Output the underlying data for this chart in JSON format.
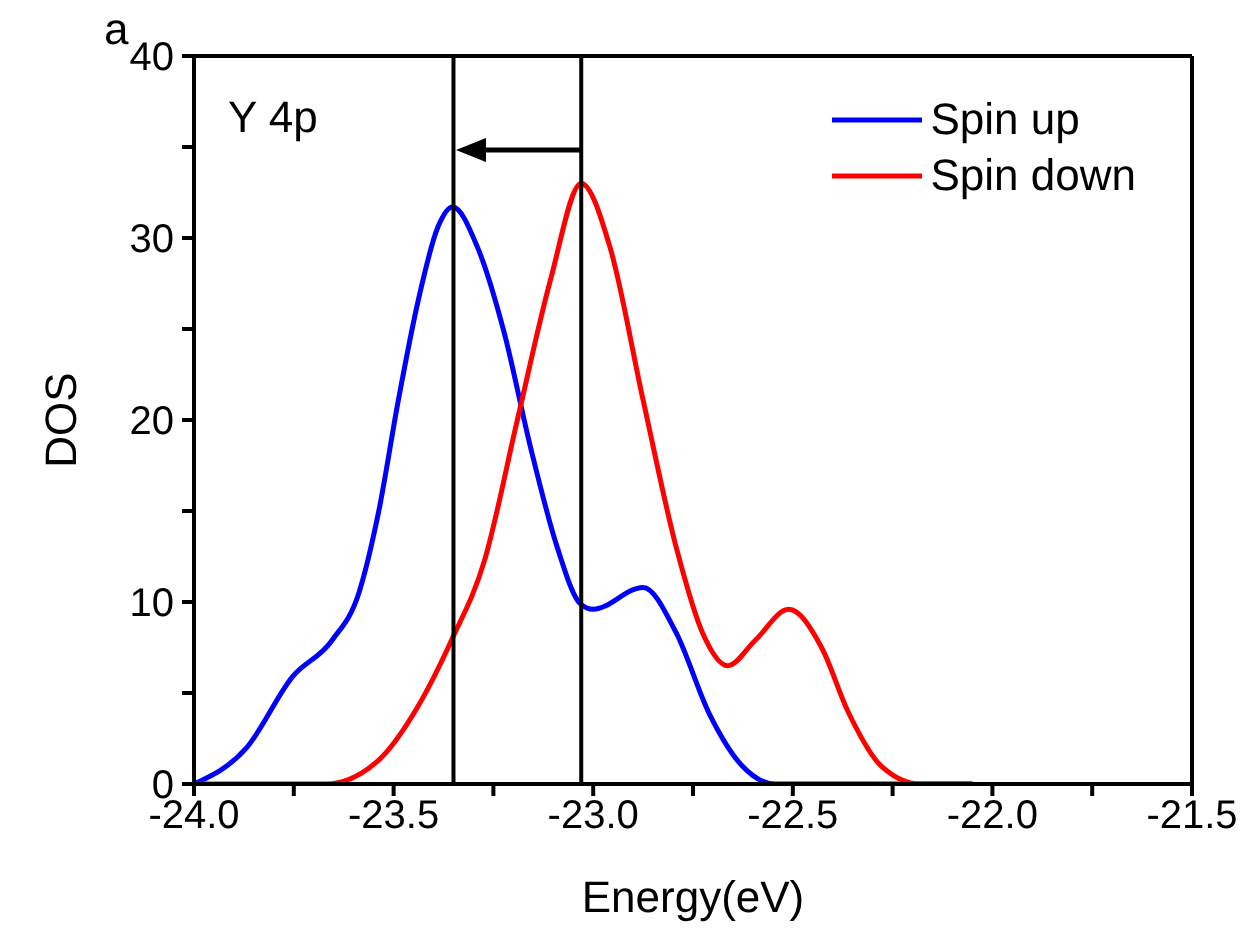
{
  "chart_data": {
    "type": "line",
    "xlabel": "Energy(eV)",
    "ylabel": "DOS",
    "annotations": [
      "a",
      "Y 4p"
    ],
    "xlim": [
      -24.0,
      -21.5
    ],
    "ylim": [
      0,
      40
    ],
    "xticks": [
      {
        "value": -24.0,
        "label": "-24.0"
      },
      {
        "value": -23.75,
        "label": null
      },
      {
        "value": -23.5,
        "label": "-23.5"
      },
      {
        "value": -23.25,
        "label": null
      },
      {
        "value": -23.0,
        "label": "-23.0"
      },
      {
        "value": -22.75,
        "label": null
      },
      {
        "value": -22.5,
        "label": "-22.5"
      },
      {
        "value": -22.25,
        "label": null
      },
      {
        "value": -22.0,
        "label": "-22.0"
      },
      {
        "value": -21.75,
        "label": null
      },
      {
        "value": -21.5,
        "label": "-21.5"
      }
    ],
    "yticks": [
      0,
      {
        "value": 5,
        "label": null
      },
      10,
      {
        "value": 15,
        "label": null
      },
      20,
      {
        "value": 25,
        "label": null
      },
      30,
      {
        "value": 35,
        "label": null
      },
      40
    ],
    "grid": false,
    "legend": "top right",
    "marker": "none",
    "line_style": "solid",
    "ref_lines": [
      {
        "axis": "x",
        "value": -23.35,
        "color": "#000000"
      },
      {
        "axis": "x",
        "value": -23.03,
        "color": "#000000"
      }
    ],
    "series": [
      {
        "name": "Spin up",
        "color": "#0000ff",
        "x": [
          -24.0,
          -23.868,
          -23.753,
          -23.654,
          -23.587,
          -23.538,
          -23.488,
          -23.438,
          -23.389,
          -23.352,
          -23.29,
          -23.223,
          -23.157,
          -23.09,
          -23.032,
          -23.0,
          -22.875,
          -22.792,
          -22.71,
          -22.627,
          -22.544,
          -22.3,
          -22.05
        ],
        "values": [
          0,
          2.0,
          5.9,
          7.9,
          10.5,
          14.9,
          21.1,
          26.6,
          30.6,
          31.7,
          29.5,
          24.8,
          18.5,
          13.0,
          9.9,
          9.6,
          10.8,
          8.3,
          3.9,
          1.0,
          0,
          0,
          0
        ]
      },
      {
        "name": "Spin down",
        "color": "#ff0000",
        "x": [
          -24.0,
          -23.8,
          -23.67,
          -23.538,
          -23.438,
          -23.355,
          -23.272,
          -23.19,
          -23.107,
          -23.03,
          -22.958,
          -22.875,
          -22.792,
          -22.726,
          -22.663,
          -22.594,
          -22.51,
          -22.428,
          -22.36,
          -22.279,
          -22.18,
          -22.05
        ],
        "values": [
          0,
          0,
          0,
          1.3,
          4.3,
          7.9,
          12.3,
          20.0,
          27.7,
          33.0,
          29.5,
          21.1,
          13.0,
          8.3,
          6.5,
          7.9,
          9.6,
          7.5,
          3.9,
          1.0,
          0,
          0
        ]
      }
    ]
  }
}
